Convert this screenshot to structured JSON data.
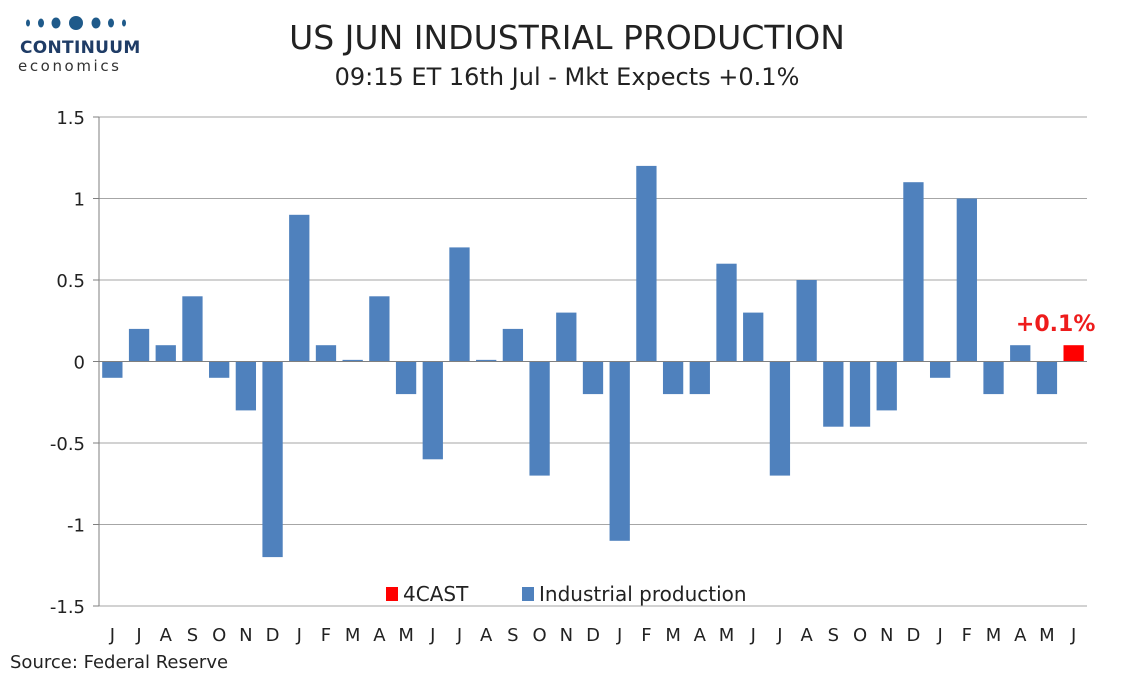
{
  "logo": {
    "name": "CONTINUUM",
    "sub": "economics",
    "dot_color": "#1f5a8a"
  },
  "title": "US JUN INDUSTRIAL PRODUCTION",
  "subtitle": "09:15 ET 16th Jul - Mkt Expects +0.1%",
  "source": "Source: Federal Reserve",
  "colors": {
    "actual": "#4f81bd",
    "forecast": "#ff0000",
    "forecast_label": "#ee1c1c",
    "grid": "#a6a6a6"
  },
  "chart_data": {
    "type": "bar",
    "ylim": [
      -1.5,
      1.5
    ],
    "yticks": [
      1.5,
      1,
      0.5,
      0,
      -0.5,
      -1,
      -1.5
    ],
    "ytick_labels": [
      "1.5",
      "1",
      "0.5",
      "0",
      "-0.5",
      "-1",
      "-1.5"
    ],
    "grid": true,
    "categories": [
      "J",
      "J",
      "A",
      "S",
      "O",
      "N",
      "D",
      "J",
      "F",
      "M",
      "A",
      "M",
      "J",
      "J",
      "A",
      "S",
      "O",
      "N",
      "D",
      "J",
      "F",
      "M",
      "A",
      "M",
      "J",
      "J",
      "A",
      "S",
      "O",
      "N",
      "D",
      "J",
      "F",
      "M",
      "A",
      "M",
      "J"
    ],
    "series": [
      {
        "name": "Industrial production",
        "values": [
          -0.1,
          0.2,
          0.1,
          0.4,
          -0.1,
          -0.3,
          -1.2,
          0.9,
          0.1,
          0.01,
          0.4,
          -0.2,
          -0.6,
          0.7,
          0.01,
          0.2,
          -0.7,
          0.3,
          -0.2,
          -1.1,
          1.2,
          -0.2,
          -0.2,
          0.6,
          0.3,
          -0.7,
          0.5,
          -0.4,
          -0.4,
          -0.3,
          1.1,
          -0.1,
          1.0,
          -0.2,
          0.1,
          -0.2,
          null
        ]
      },
      {
        "name": "4CAST",
        "values": [
          null,
          null,
          null,
          null,
          null,
          null,
          null,
          null,
          null,
          null,
          null,
          null,
          null,
          null,
          null,
          null,
          null,
          null,
          null,
          null,
          null,
          null,
          null,
          null,
          null,
          null,
          null,
          null,
          null,
          null,
          null,
          null,
          null,
          null,
          null,
          null,
          0.1
        ]
      }
    ],
    "annotation": "+0.1%",
    "legend": [
      "4CAST",
      "Industrial production"
    ],
    "legend_position": "bottom-center"
  }
}
